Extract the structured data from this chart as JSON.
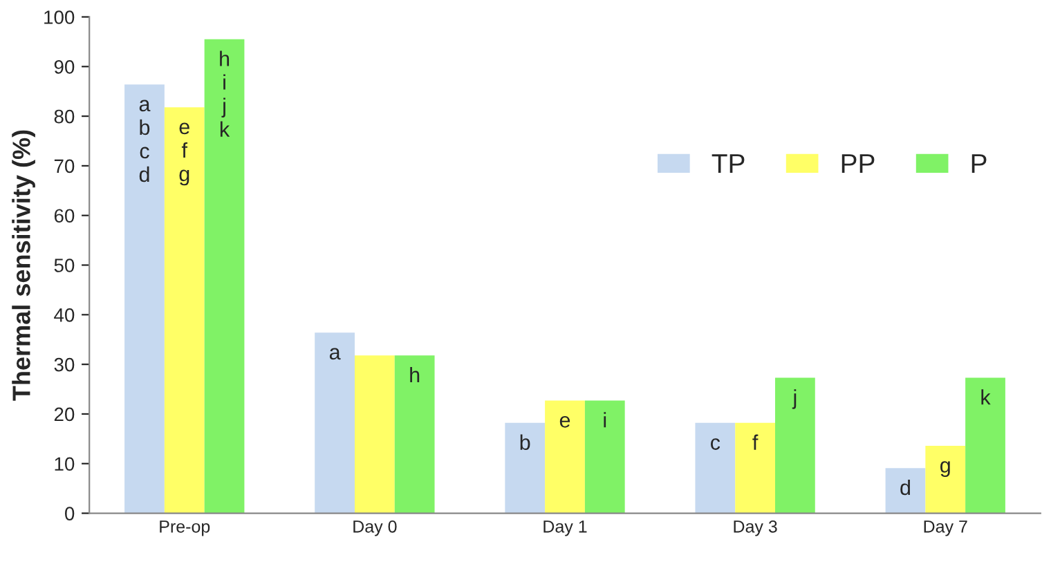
{
  "chart_data": {
    "type": "bar",
    "ylabel": "Thermal sensitivity (%)",
    "categories": [
      "Pre-op",
      "Day 0",
      "Day 1",
      "Day 3",
      "Day 7"
    ],
    "series": [
      {
        "name": "TP",
        "color": "#c6d9f0",
        "values": [
          86.4,
          36.4,
          18.2,
          18.2,
          9.1
        ],
        "value_labels": [
          "a\nb\nc\nd",
          "a",
          "b",
          "c",
          "d"
        ]
      },
      {
        "name": "PP",
        "color": "#ffff66",
        "values": [
          81.8,
          31.8,
          22.7,
          18.2,
          13.6
        ],
        "value_labels": [
          "e\nf\ng",
          null,
          "e",
          "f",
          "g"
        ]
      },
      {
        "name": "P",
        "color": "#80f266",
        "values": [
          95.5,
          31.8,
          22.7,
          27.3,
          27.3
        ],
        "value_labels": [
          "h\ni\nj\nk",
          "h",
          "i",
          "j",
          "k"
        ]
      }
    ],
    "ylim": [
      0,
      100
    ],
    "yticks": [
      0,
      10,
      20,
      30,
      40,
      50,
      60,
      70,
      80,
      90,
      100
    ],
    "grid": false,
    "legend": "right"
  }
}
